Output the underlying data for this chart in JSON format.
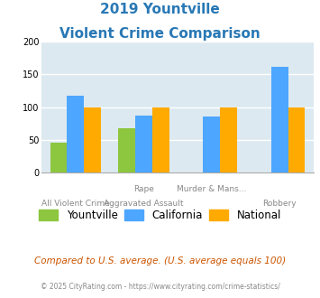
{
  "title_line1": "2019 Yountville",
  "title_line2": "Violent Crime Comparison",
  "title_color": "#2878b5",
  "top_labels": [
    "",
    "Rape",
    "Murder & Mans...",
    ""
  ],
  "bottom_labels": [
    "All Violent Crime",
    "Aggravated Assault",
    "",
    "Robbery"
  ],
  "yountville_vals": [
    46,
    68,
    0,
    0
  ],
  "california_vals": [
    117,
    87,
    86,
    162
  ],
  "national_vals": [
    100,
    100,
    100,
    100
  ],
  "colors": {
    "Yountville": "#8dc63f",
    "California": "#4da6ff",
    "National": "#ffaa00"
  },
  "ylim": [
    0,
    200
  ],
  "yticks": [
    0,
    50,
    100,
    150,
    200
  ],
  "bg_color": "#dce9f0",
  "grid_color": "#ffffff",
  "footer_text": "Compared to U.S. average. (U.S. average equals 100)",
  "footer_color": "#cc5500",
  "copyright_text": "© 2025 CityRating.com - https://www.cityrating.com/crime-statistics/",
  "copyright_color": "#888888",
  "bar_width": 0.25
}
